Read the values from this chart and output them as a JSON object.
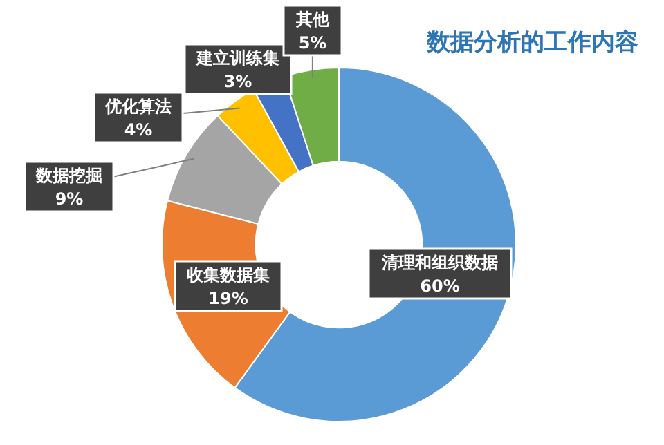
{
  "chart_data": {
    "type": "donut",
    "title": "数据分析的工作内容",
    "categories": [
      "清理和组织数据",
      "收集数据集",
      "数据挖掘",
      "优化算法",
      "建立训练集",
      "其他"
    ],
    "values": [
      60,
      19,
      9,
      4,
      3,
      5
    ],
    "value_labels": [
      "60%",
      "19%",
      "9%",
      "4%",
      "3%",
      "5%"
    ],
    "colors": [
      "#5b9bd5",
      "#ed7d31",
      "#a5a5a5",
      "#ffc000",
      "#4472c4",
      "#70ad47"
    ]
  }
}
